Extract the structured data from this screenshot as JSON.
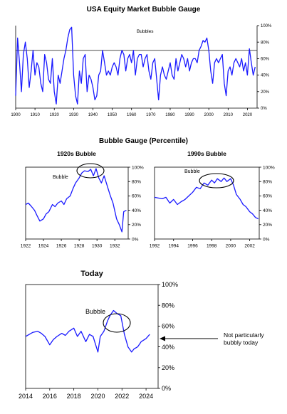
{
  "chart_data": [
    {
      "id": "main",
      "type": "line",
      "title": "USA Equity Market Bubble Gauge",
      "annotation": "Bubbles",
      "threshold": 70,
      "xlim": [
        1900,
        2025
      ],
      "ylim": [
        0,
        100
      ],
      "x_ticks": [
        1900,
        1910,
        1920,
        1930,
        1940,
        1950,
        1960,
        1970,
        1980,
        1990,
        2000,
        2010,
        2020
      ],
      "y_ticks": [
        "0%",
        "20%",
        "40%",
        "60%",
        "80%",
        "100%"
      ],
      "series": [
        {
          "name": "Bubble Gauge",
          "x": [
            1900,
            1901,
            1902,
            1903,
            1904,
            1905,
            1906,
            1907,
            1908,
            1909,
            1910,
            1911,
            1912,
            1913,
            1914,
            1915,
            1916,
            1917,
            1918,
            1919,
            1920,
            1921,
            1922,
            1923,
            1924,
            1925,
            1926,
            1927,
            1928,
            1929,
            1930,
            1931,
            1932,
            1933,
            1934,
            1935,
            1936,
            1937,
            1938,
            1939,
            1940,
            1941,
            1942,
            1943,
            1944,
            1945,
            1946,
            1947,
            1948,
            1949,
            1950,
            1951,
            1952,
            1953,
            1954,
            1955,
            1956,
            1957,
            1958,
            1959,
            1960,
            1961,
            1962,
            1963,
            1964,
            1965,
            1966,
            1967,
            1968,
            1969,
            1970,
            1971,
            1972,
            1973,
            1974,
            1975,
            1976,
            1977,
            1978,
            1979,
            1980,
            1981,
            1982,
            1983,
            1984,
            1985,
            1986,
            1987,
            1988,
            1989,
            1990,
            1991,
            1992,
            1993,
            1994,
            1995,
            1996,
            1997,
            1998,
            1999,
            2000,
            2001,
            2002,
            2003,
            2004,
            2005,
            2006,
            2007,
            2008,
            2009,
            2010,
            2011,
            2012,
            2013,
            2014,
            2015,
            2016,
            2017,
            2018,
            2019,
            2020,
            2021,
            2022,
            2023,
            2024
          ],
          "values": [
            15,
            85,
            55,
            20,
            65,
            80,
            60,
            25,
            45,
            70,
            40,
            55,
            50,
            30,
            20,
            65,
            55,
            35,
            30,
            60,
            20,
            5,
            40,
            30,
            45,
            60,
            70,
            85,
            95,
            98,
            40,
            15,
            5,
            45,
            30,
            60,
            65,
            20,
            40,
            35,
            25,
            10,
            15,
            40,
            45,
            70,
            55,
            40,
            45,
            40,
            50,
            55,
            50,
            40,
            60,
            70,
            65,
            45,
            60,
            65,
            55,
            70,
            40,
            60,
            65,
            65,
            50,
            60,
            65,
            45,
            35,
            55,
            60,
            35,
            10,
            40,
            50,
            40,
            35,
            45,
            55,
            40,
            35,
            60,
            45,
            55,
            65,
            60,
            50,
            60,
            45,
            55,
            60,
            60,
            55,
            70,
            75,
            82,
            80,
            85,
            70,
            45,
            30,
            55,
            60,
            55,
            60,
            65,
            30,
            15,
            45,
            50,
            40,
            55,
            60,
            55,
            50,
            60,
            45,
            55,
            40,
            72,
            55,
            40,
            50
          ]
        }
      ]
    },
    {
      "id": "p1920",
      "type": "line",
      "group_title": "Bubble Gauge (Percentile)",
      "title": "1920s Bubble",
      "annotation": "Bubble",
      "xlim": [
        1922,
        1933.5
      ],
      "ylim": [
        0,
        100
      ],
      "x_ticks": [
        1922,
        1924,
        1926,
        1928,
        1930,
        1932
      ],
      "y_ticks": [
        "0%",
        "20%",
        "40%",
        "60%",
        "80%",
        "100%"
      ],
      "series": [
        {
          "name": "Bubble Gauge",
          "x": [
            1922,
            1922.3,
            1922.6,
            1923,
            1923.3,
            1923.6,
            1924,
            1924.3,
            1924.6,
            1925,
            1925.3,
            1925.6,
            1926,
            1926.3,
            1926.6,
            1927,
            1927.3,
            1927.6,
            1928,
            1928.3,
            1928.6,
            1929,
            1929.3,
            1929.6,
            1929.9,
            1930.2,
            1930.5,
            1930.8,
            1931.2,
            1931.5,
            1931.8,
            1932.2,
            1932.5,
            1932.8,
            1933,
            1933.3
          ],
          "values": [
            48,
            50,
            46,
            40,
            32,
            25,
            28,
            35,
            38,
            48,
            45,
            50,
            53,
            48,
            56,
            60,
            70,
            78,
            85,
            92,
            95,
            94,
            97,
            88,
            98,
            85,
            78,
            88,
            72,
            60,
            50,
            28,
            20,
            10,
            38,
            40
          ]
        }
      ]
    },
    {
      "id": "p1990",
      "type": "line",
      "title": "1990s Bubble",
      "annotation": "Bubble",
      "xlim": [
        1992,
        2003
      ],
      "ylim": [
        0,
        100
      ],
      "x_ticks": [
        1992,
        1994,
        1996,
        1998,
        2000,
        2002
      ],
      "y_ticks": [
        "0%",
        "20%",
        "40%",
        "60%",
        "80%",
        "100%"
      ],
      "series": [
        {
          "name": "Bubble Gauge",
          "x": [
            1992,
            1992.4,
            1992.8,
            1993.2,
            1993.6,
            1994,
            1994.4,
            1994.8,
            1995.2,
            1995.6,
            1996,
            1996.4,
            1996.8,
            1997.2,
            1997.6,
            1998,
            1998.3,
            1998.6,
            1999,
            1999.3,
            1999.6,
            2000,
            2000.3,
            2000.6,
            2001,
            2001.3,
            2001.6,
            2002,
            2002.3,
            2002.6,
            2002.9
          ],
          "values": [
            58,
            57,
            56,
            58,
            50,
            55,
            48,
            52,
            55,
            60,
            65,
            72,
            70,
            78,
            75,
            82,
            78,
            84,
            80,
            85,
            80,
            84,
            75,
            62,
            55,
            48,
            45,
            38,
            35,
            30,
            28
          ]
        }
      ]
    },
    {
      "id": "today",
      "type": "line",
      "title": "Today",
      "annotation": "Bubble",
      "callout": "Not particularly bubbly today",
      "xlim": [
        2014,
        2025
      ],
      "ylim": [
        0,
        100
      ],
      "x_ticks": [
        2014,
        2016,
        2018,
        2020,
        2022,
        2024
      ],
      "y_ticks": [
        "0%",
        "20%",
        "40%",
        "60%",
        "80%",
        "100%"
      ],
      "series": [
        {
          "name": "Bubble Gauge",
          "x": [
            2014,
            2014.3,
            2014.6,
            2015,
            2015.3,
            2015.6,
            2016,
            2016.3,
            2016.6,
            2017,
            2017.3,
            2017.6,
            2018,
            2018.3,
            2018.6,
            2019,
            2019.3,
            2019.6,
            2020,
            2020.2,
            2020.5,
            2020.8,
            2021,
            2021.3,
            2021.6,
            2021.9,
            2022.2,
            2022.5,
            2022.8,
            2023,
            2023.3,
            2023.6,
            2024,
            2024.3
          ],
          "values": [
            50,
            52,
            54,
            55,
            53,
            50,
            42,
            47,
            50,
            53,
            51,
            55,
            58,
            50,
            55,
            45,
            52,
            50,
            35,
            50,
            55,
            65,
            70,
            75,
            72,
            70,
            52,
            40,
            35,
            38,
            40,
            45,
            48,
            52
          ]
        }
      ]
    }
  ]
}
